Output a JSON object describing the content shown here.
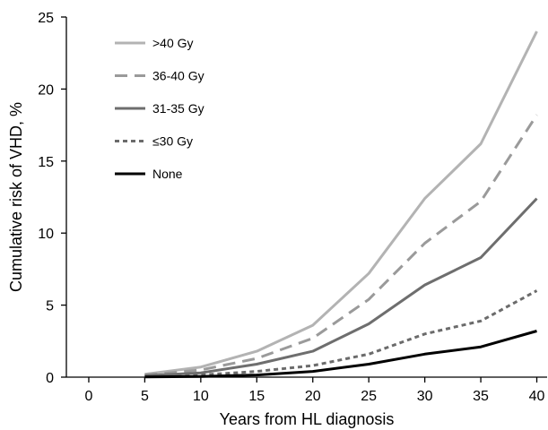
{
  "chart_data": {
    "type": "line",
    "xlabel": "Years from HL diagnosis",
    "ylabel": "Cumulative risk of VHD, %",
    "xlim": [
      -2,
      41
    ],
    "ylim": [
      0,
      25
    ],
    "x_ticks": [
      "0",
      "5",
      "10",
      "15",
      "20",
      "25",
      "30",
      "35",
      "40"
    ],
    "y_ticks": [
      "0",
      "5",
      "10",
      "15",
      "20",
      "25"
    ],
    "grid": false,
    "legend_position": "top-left",
    "x": [
      5,
      10,
      15,
      20,
      25,
      30,
      35,
      40
    ],
    "series": [
      {
        "name": ">40 Gy",
        "color": "#b3b3b3",
        "dash": "solid",
        "values": [
          0.2,
          0.7,
          1.8,
          3.6,
          7.2,
          12.4,
          16.2,
          24.0
        ]
      },
      {
        "name": "36-40 Gy",
        "color": "#9a9a9a",
        "dash": "dashed",
        "values": [
          0.15,
          0.5,
          1.3,
          2.7,
          5.4,
          9.3,
          12.2,
          18.2
        ]
      },
      {
        "name": "31-35 Gy",
        "color": "#6e6e6e",
        "dash": "solid",
        "values": [
          0.1,
          0.3,
          0.9,
          1.8,
          3.7,
          6.4,
          8.3,
          12.4
        ]
      },
      {
        "name": "≤30 Gy",
        "color": "#6b6b6b",
        "dash": "dotted",
        "values": [
          0.05,
          0.15,
          0.4,
          0.8,
          1.6,
          3.0,
          3.9,
          6.0
        ]
      },
      {
        "name": "None",
        "color": "#000000",
        "dash": "solid",
        "values": [
          0.02,
          0.05,
          0.15,
          0.4,
          0.9,
          1.6,
          2.1,
          3.2
        ]
      }
    ]
  }
}
